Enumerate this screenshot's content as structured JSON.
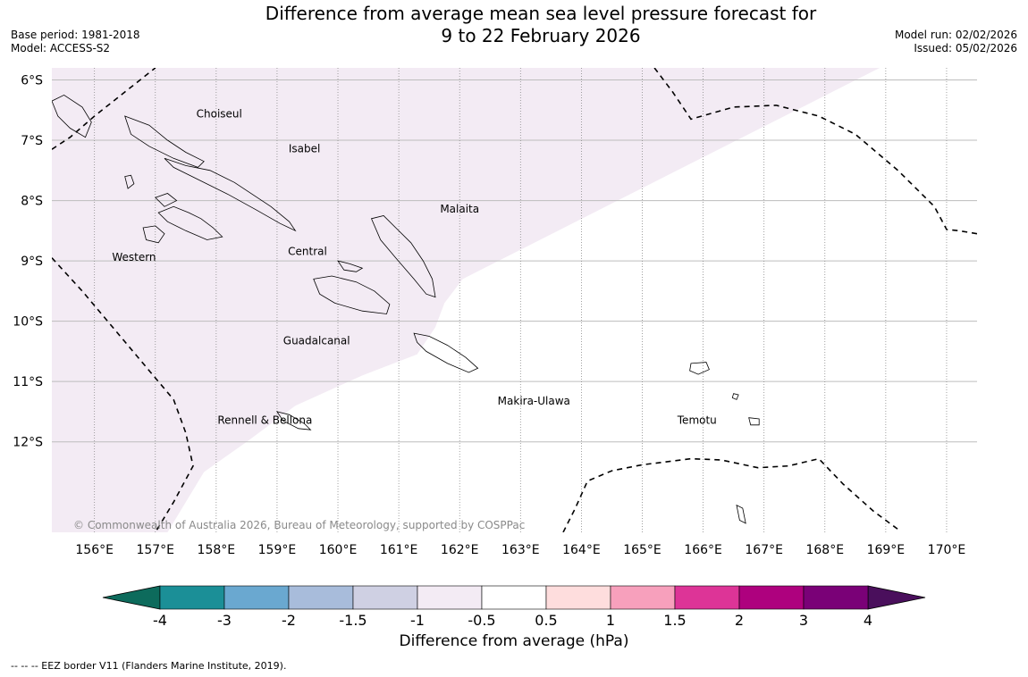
{
  "title": {
    "line1": "Difference from average mean sea level pressure forecast for",
    "line2": "9 to 22 February 2026"
  },
  "meta_left": {
    "base_period": "Base period: 1981-2018",
    "model": "Model: ACCESS-S2"
  },
  "meta_right": {
    "model_run": "Model run: 02/02/2026",
    "issued": "Issued: 05/02/2026"
  },
  "copyright": "© Commonwealth of Australia 2026, Bureau of Meteorology, supported by COSPPac",
  "footer": "--  --  -- EEZ border V11 (Flanders Marine Institute, 2019).",
  "map": {
    "lon_range": [
      155.3,
      170.5
    ],
    "lat_range": [
      -13.5,
      -5.8
    ],
    "lon_ticks": [
      {
        "value": 156,
        "label": "156°E"
      },
      {
        "value": 157,
        "label": "157°E"
      },
      {
        "value": 158,
        "label": "158°E"
      },
      {
        "value": 159,
        "label": "159°E"
      },
      {
        "value": 160,
        "label": "160°E"
      },
      {
        "value": 161,
        "label": "161°E"
      },
      {
        "value": 162,
        "label": "162°E"
      },
      {
        "value": 163,
        "label": "163°E"
      },
      {
        "value": 164,
        "label": "164°E"
      },
      {
        "value": 165,
        "label": "165°E"
      },
      {
        "value": 166,
        "label": "166°E"
      },
      {
        "value": 167,
        "label": "167°E"
      },
      {
        "value": 168,
        "label": "168°E"
      },
      {
        "value": 169,
        "label": "169°E"
      },
      {
        "value": 170,
        "label": "170°E"
      }
    ],
    "lat_ticks": [
      {
        "value": -6,
        "label": "6°S"
      },
      {
        "value": -7,
        "label": "7°S"
      },
      {
        "value": -8,
        "label": "8°S"
      },
      {
        "value": -9,
        "label": "9°S"
      },
      {
        "value": -10,
        "label": "10°S"
      },
      {
        "value": -11,
        "label": "11°S"
      },
      {
        "value": -12,
        "label": "12°S"
      }
    ],
    "region_labels": [
      {
        "name": "Choiseul",
        "lon": 158.05,
        "lat": -6.62
      },
      {
        "name": "Isabel",
        "lon": 159.45,
        "lat": -7.2
      },
      {
        "name": "Malaita",
        "lon": 162.0,
        "lat": -8.2
      },
      {
        "name": "Western",
        "lon": 156.65,
        "lat": -9.0
      },
      {
        "name": "Central",
        "lon": 159.5,
        "lat": -8.9
      },
      {
        "name": "Guadalcanal",
        "lon": 159.65,
        "lat": -10.38
      },
      {
        "name": "Makira-Ulawa",
        "lon": 163.22,
        "lat": -11.38
      },
      {
        "name": "Rennell & Bellona",
        "lon": 158.8,
        "lat": -11.7
      },
      {
        "name": "Temotu",
        "lon": 165.9,
        "lat": -11.7
      }
    ],
    "anomaly_shading": {
      "category": "-1 to -0.5",
      "color": "#f3ebf4",
      "polygon": [
        [
          155.3,
          -5.8
        ],
        [
          168.9,
          -5.8
        ],
        [
          162.05,
          -9.3
        ],
        [
          161.75,
          -9.7
        ],
        [
          161.6,
          -10.1
        ],
        [
          161.3,
          -10.55
        ],
        [
          160.4,
          -10.9
        ],
        [
          159.3,
          -11.4
        ],
        [
          158.5,
          -12.0
        ],
        [
          157.8,
          -12.5
        ],
        [
          157.2,
          -13.5
        ],
        [
          155.3,
          -13.5
        ]
      ]
    },
    "eez_borders": [
      [
        [
          155.3,
          -7.15
        ],
        [
          155.6,
          -6.95
        ],
        [
          156.0,
          -6.6
        ],
        [
          156.5,
          -6.2
        ],
        [
          157.0,
          -5.8
        ]
      ],
      [
        [
          155.3,
          -8.95
        ],
        [
          155.8,
          -9.5
        ],
        [
          156.3,
          -10.1
        ],
        [
          156.8,
          -10.7
        ],
        [
          157.3,
          -11.3
        ],
        [
          157.5,
          -11.85
        ],
        [
          157.62,
          -12.4
        ],
        [
          157.3,
          -13.0
        ],
        [
          157.0,
          -13.5
        ]
      ],
      [
        [
          165.2,
          -5.8
        ],
        [
          165.5,
          -6.2
        ],
        [
          165.8,
          -6.65
        ],
        [
          166.5,
          -6.45
        ],
        [
          167.2,
          -6.42
        ],
        [
          167.9,
          -6.6
        ],
        [
          168.5,
          -6.9
        ],
        [
          169.2,
          -7.5
        ],
        [
          169.8,
          -8.1
        ],
        [
          170.0,
          -8.48
        ],
        [
          170.2,
          -8.5
        ],
        [
          170.5,
          -8.55
        ]
      ],
      [
        [
          163.7,
          -13.5
        ],
        [
          163.9,
          -13.1
        ],
        [
          164.1,
          -12.65
        ],
        [
          164.5,
          -12.48
        ],
        [
          165.0,
          -12.38
        ],
        [
          165.8,
          -12.28
        ],
        [
          166.3,
          -12.3
        ],
        [
          166.9,
          -12.43
        ],
        [
          167.4,
          -12.4
        ],
        [
          167.9,
          -12.28
        ],
        [
          168.3,
          -12.7
        ],
        [
          168.8,
          -13.15
        ],
        [
          169.2,
          -13.45
        ]
      ]
    ],
    "islands": [
      [
        [
          155.3,
          -6.35
        ],
        [
          155.5,
          -6.25
        ],
        [
          155.8,
          -6.45
        ],
        [
          155.95,
          -6.7
        ],
        [
          155.85,
          -6.95
        ],
        [
          155.6,
          -6.8
        ],
        [
          155.4,
          -6.6
        ]
      ],
      [
        [
          156.5,
          -6.6
        ],
        [
          156.9,
          -6.75
        ],
        [
          157.2,
          -7.0
        ],
        [
          157.5,
          -7.2
        ],
        [
          157.8,
          -7.35
        ],
        [
          157.7,
          -7.45
        ],
        [
          157.3,
          -7.3
        ],
        [
          156.9,
          -7.1
        ],
        [
          156.6,
          -6.9
        ]
      ],
      [
        [
          157.15,
          -7.3
        ],
        [
          157.5,
          -7.42
        ],
        [
          157.9,
          -7.5
        ],
        [
          158.3,
          -7.7
        ],
        [
          158.6,
          -7.9
        ],
        [
          158.9,
          -8.1
        ],
        [
          159.2,
          -8.35
        ],
        [
          159.3,
          -8.5
        ],
        [
          159.05,
          -8.38
        ],
        [
          158.65,
          -8.15
        ],
        [
          158.2,
          -7.9
        ],
        [
          157.7,
          -7.65
        ],
        [
          157.3,
          -7.45
        ]
      ],
      [
        [
          157.0,
          -7.95
        ],
        [
          157.2,
          -7.88
        ],
        [
          157.35,
          -8.0
        ],
        [
          157.15,
          -8.1
        ]
      ],
      [
        [
          157.05,
          -8.2
        ],
        [
          157.3,
          -8.1
        ],
        [
          157.55,
          -8.2
        ],
        [
          157.75,
          -8.3
        ],
        [
          157.95,
          -8.45
        ],
        [
          158.1,
          -8.6
        ],
        [
          157.85,
          -8.65
        ],
        [
          157.5,
          -8.5
        ],
        [
          157.2,
          -8.35
        ]
      ],
      [
        [
          156.8,
          -8.45
        ],
        [
          157.0,
          -8.42
        ],
        [
          157.15,
          -8.55
        ],
        [
          157.05,
          -8.7
        ],
        [
          156.85,
          -8.65
        ]
      ],
      [
        [
          156.5,
          -7.6
        ],
        [
          156.6,
          -7.58
        ],
        [
          156.65,
          -7.72
        ],
        [
          156.55,
          -7.8
        ]
      ],
      [
        [
          160.55,
          -8.3
        ],
        [
          160.75,
          -8.25
        ],
        [
          160.95,
          -8.45
        ],
        [
          161.2,
          -8.7
        ],
        [
          161.4,
          -9.0
        ],
        [
          161.55,
          -9.3
        ],
        [
          161.6,
          -9.6
        ],
        [
          161.45,
          -9.55
        ],
        [
          161.25,
          -9.3
        ],
        [
          160.95,
          -8.95
        ],
        [
          160.7,
          -8.65
        ]
      ],
      [
        [
          159.6,
          -9.3
        ],
        [
          159.9,
          -9.25
        ],
        [
          160.3,
          -9.35
        ],
        [
          160.6,
          -9.5
        ],
        [
          160.85,
          -9.72
        ],
        [
          160.8,
          -9.88
        ],
        [
          160.4,
          -9.83
        ],
        [
          159.95,
          -9.7
        ],
        [
          159.7,
          -9.55
        ]
      ],
      [
        [
          161.25,
          -10.2
        ],
        [
          161.5,
          -10.25
        ],
        [
          161.8,
          -10.4
        ],
        [
          162.1,
          -10.6
        ],
        [
          162.3,
          -10.78
        ],
        [
          162.15,
          -10.85
        ],
        [
          161.8,
          -10.7
        ],
        [
          161.45,
          -10.5
        ],
        [
          161.3,
          -10.35
        ]
      ],
      [
        [
          159.0,
          -11.5
        ],
        [
          159.2,
          -11.55
        ],
        [
          159.45,
          -11.7
        ],
        [
          159.55,
          -11.8
        ],
        [
          159.35,
          -11.78
        ],
        [
          159.1,
          -11.65
        ]
      ],
      [
        [
          160.0,
          -9.0
        ],
        [
          160.2,
          -9.05
        ],
        [
          160.4,
          -9.12
        ],
        [
          160.3,
          -9.18
        ],
        [
          160.1,
          -9.15
        ]
      ],
      [
        [
          165.8,
          -10.7
        ],
        [
          166.05,
          -10.68
        ],
        [
          166.1,
          -10.8
        ],
        [
          165.92,
          -10.88
        ],
        [
          165.78,
          -10.82
        ]
      ],
      [
        [
          166.75,
          -11.6
        ],
        [
          166.92,
          -11.62
        ],
        [
          166.92,
          -11.72
        ],
        [
          166.78,
          -11.72
        ]
      ],
      [
        [
          166.5,
          -11.2
        ],
        [
          166.58,
          -11.22
        ],
        [
          166.55,
          -11.3
        ],
        [
          166.48,
          -11.27
        ]
      ],
      [
        [
          166.55,
          -13.05
        ],
        [
          166.65,
          -13.1
        ],
        [
          166.7,
          -13.35
        ],
        [
          166.6,
          -13.3
        ]
      ]
    ]
  },
  "colorbar": {
    "title": "Difference from average (hPa)",
    "tick_labels": [
      "-4",
      "-3",
      "-2",
      "-1.5",
      "-1",
      "-0.5",
      "0.5",
      "1",
      "1.5",
      "2",
      "3",
      "4"
    ],
    "low_extend_color": "#0d6b5c",
    "high_extend_color": "#4a0f5c",
    "colors": [
      "#1b8f97",
      "#6aa8d0",
      "#a8bcdb",
      "#cfd0e3",
      "#f3ebf4",
      "#ffffff",
      "#fedddd",
      "#f7a0bc",
      "#dd3497",
      "#ae017e",
      "#7a0177"
    ]
  }
}
